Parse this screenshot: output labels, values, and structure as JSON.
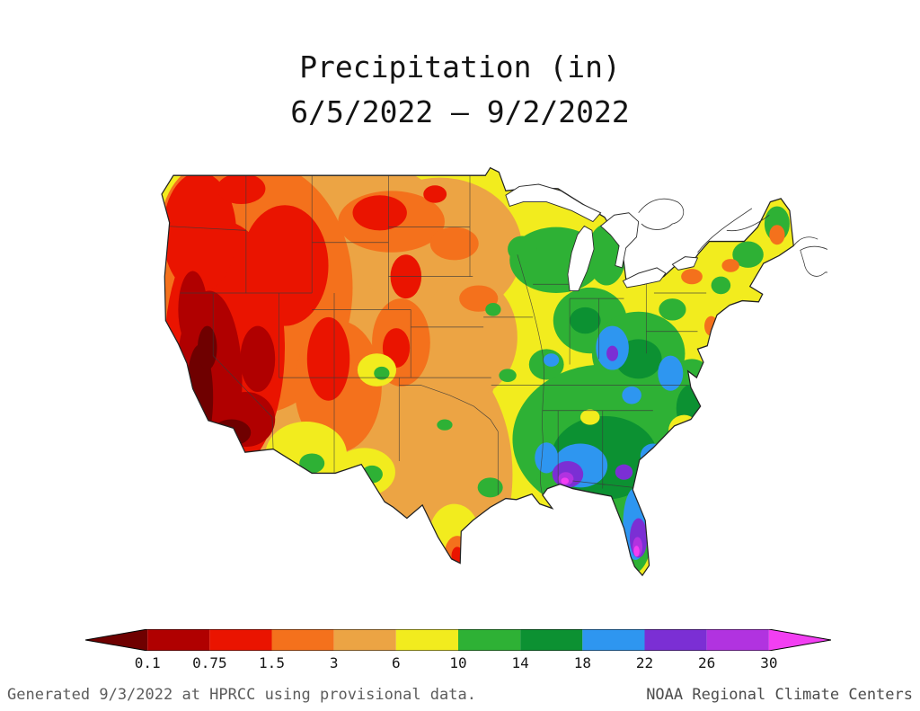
{
  "title": {
    "line1": "Precipitation (in)",
    "line2": "6/5/2022 – 9/2/2022"
  },
  "footer": {
    "left": "Generated 9/3/2022 at HPRCC using provisional data.",
    "right": "NOAA Regional Climate Centers"
  },
  "colorbar": {
    "labels": [
      "0.1",
      "0.75",
      "1.5",
      "3",
      "6",
      "10",
      "14",
      "18",
      "22",
      "26",
      "30"
    ],
    "segments": [
      {
        "range": "<0.1",
        "color": "#6f0000"
      },
      {
        "range": "0.1-0.75",
        "color": "#b00000"
      },
      {
        "range": "0.75-1.5",
        "color": "#ea1400"
      },
      {
        "range": "1.5-3",
        "color": "#f4711c"
      },
      {
        "range": "3-6",
        "color": "#eca444"
      },
      {
        "range": "6-10",
        "color": "#f2ec1e"
      },
      {
        "range": "10-14",
        "color": "#2eb135"
      },
      {
        "range": "14-18",
        "color": "#0c9132"
      },
      {
        "range": "18-22",
        "color": "#2e96f0"
      },
      {
        "range": "22-26",
        "color": "#7b2fd4"
      },
      {
        "range": "26-30",
        "color": "#b133e0"
      },
      {
        "range": ">30",
        "color": "#f23ff2"
      }
    ]
  },
  "chart_data": {
    "type": "heatmap",
    "title": "Precipitation (in)",
    "subtitle": "6/5/2022 – 9/2/2022",
    "units": "inches",
    "geography": "Contiguous United States",
    "scale_boundaries": [
      0.1,
      0.75,
      1.5,
      3,
      6,
      10,
      14,
      18,
      22,
      26,
      30
    ],
    "scale_colors": [
      "#6f0000",
      "#b00000",
      "#ea1400",
      "#f4711c",
      "#eca444",
      "#f2ec1e",
      "#2eb135",
      "#0c9132",
      "#2e96f0",
      "#7b2fd4",
      "#b133e0",
      "#f23ff2"
    ],
    "legend_position": "bottom",
    "observed_pattern": [
      {
        "region": "California coast and Central Valley",
        "precip_in": "< 0.75"
      },
      {
        "region": "Nevada / Great Basin / interior Pacific Northwest",
        "precip_in": "0.75 - 1.5"
      },
      {
        "region": "Rockies, Montana and high plains",
        "precip_in": "1.5 - 6"
      },
      {
        "region": "Central plains and Texas",
        "precip_in": "3 - 10"
      },
      {
        "region": "Upper Midwest, Great Lakes and Northeast",
        "precip_in": "6 - 14"
      },
      {
        "region": "Ohio Valley and Appalachians",
        "precip_in": "10 - 22"
      },
      {
        "region": "Southeast and Gulf Coast states",
        "precip_in": "14 - 26"
      },
      {
        "region": "Mississippi / Alabama coast and central Florida",
        "precip_in": "> 26"
      }
    ]
  }
}
